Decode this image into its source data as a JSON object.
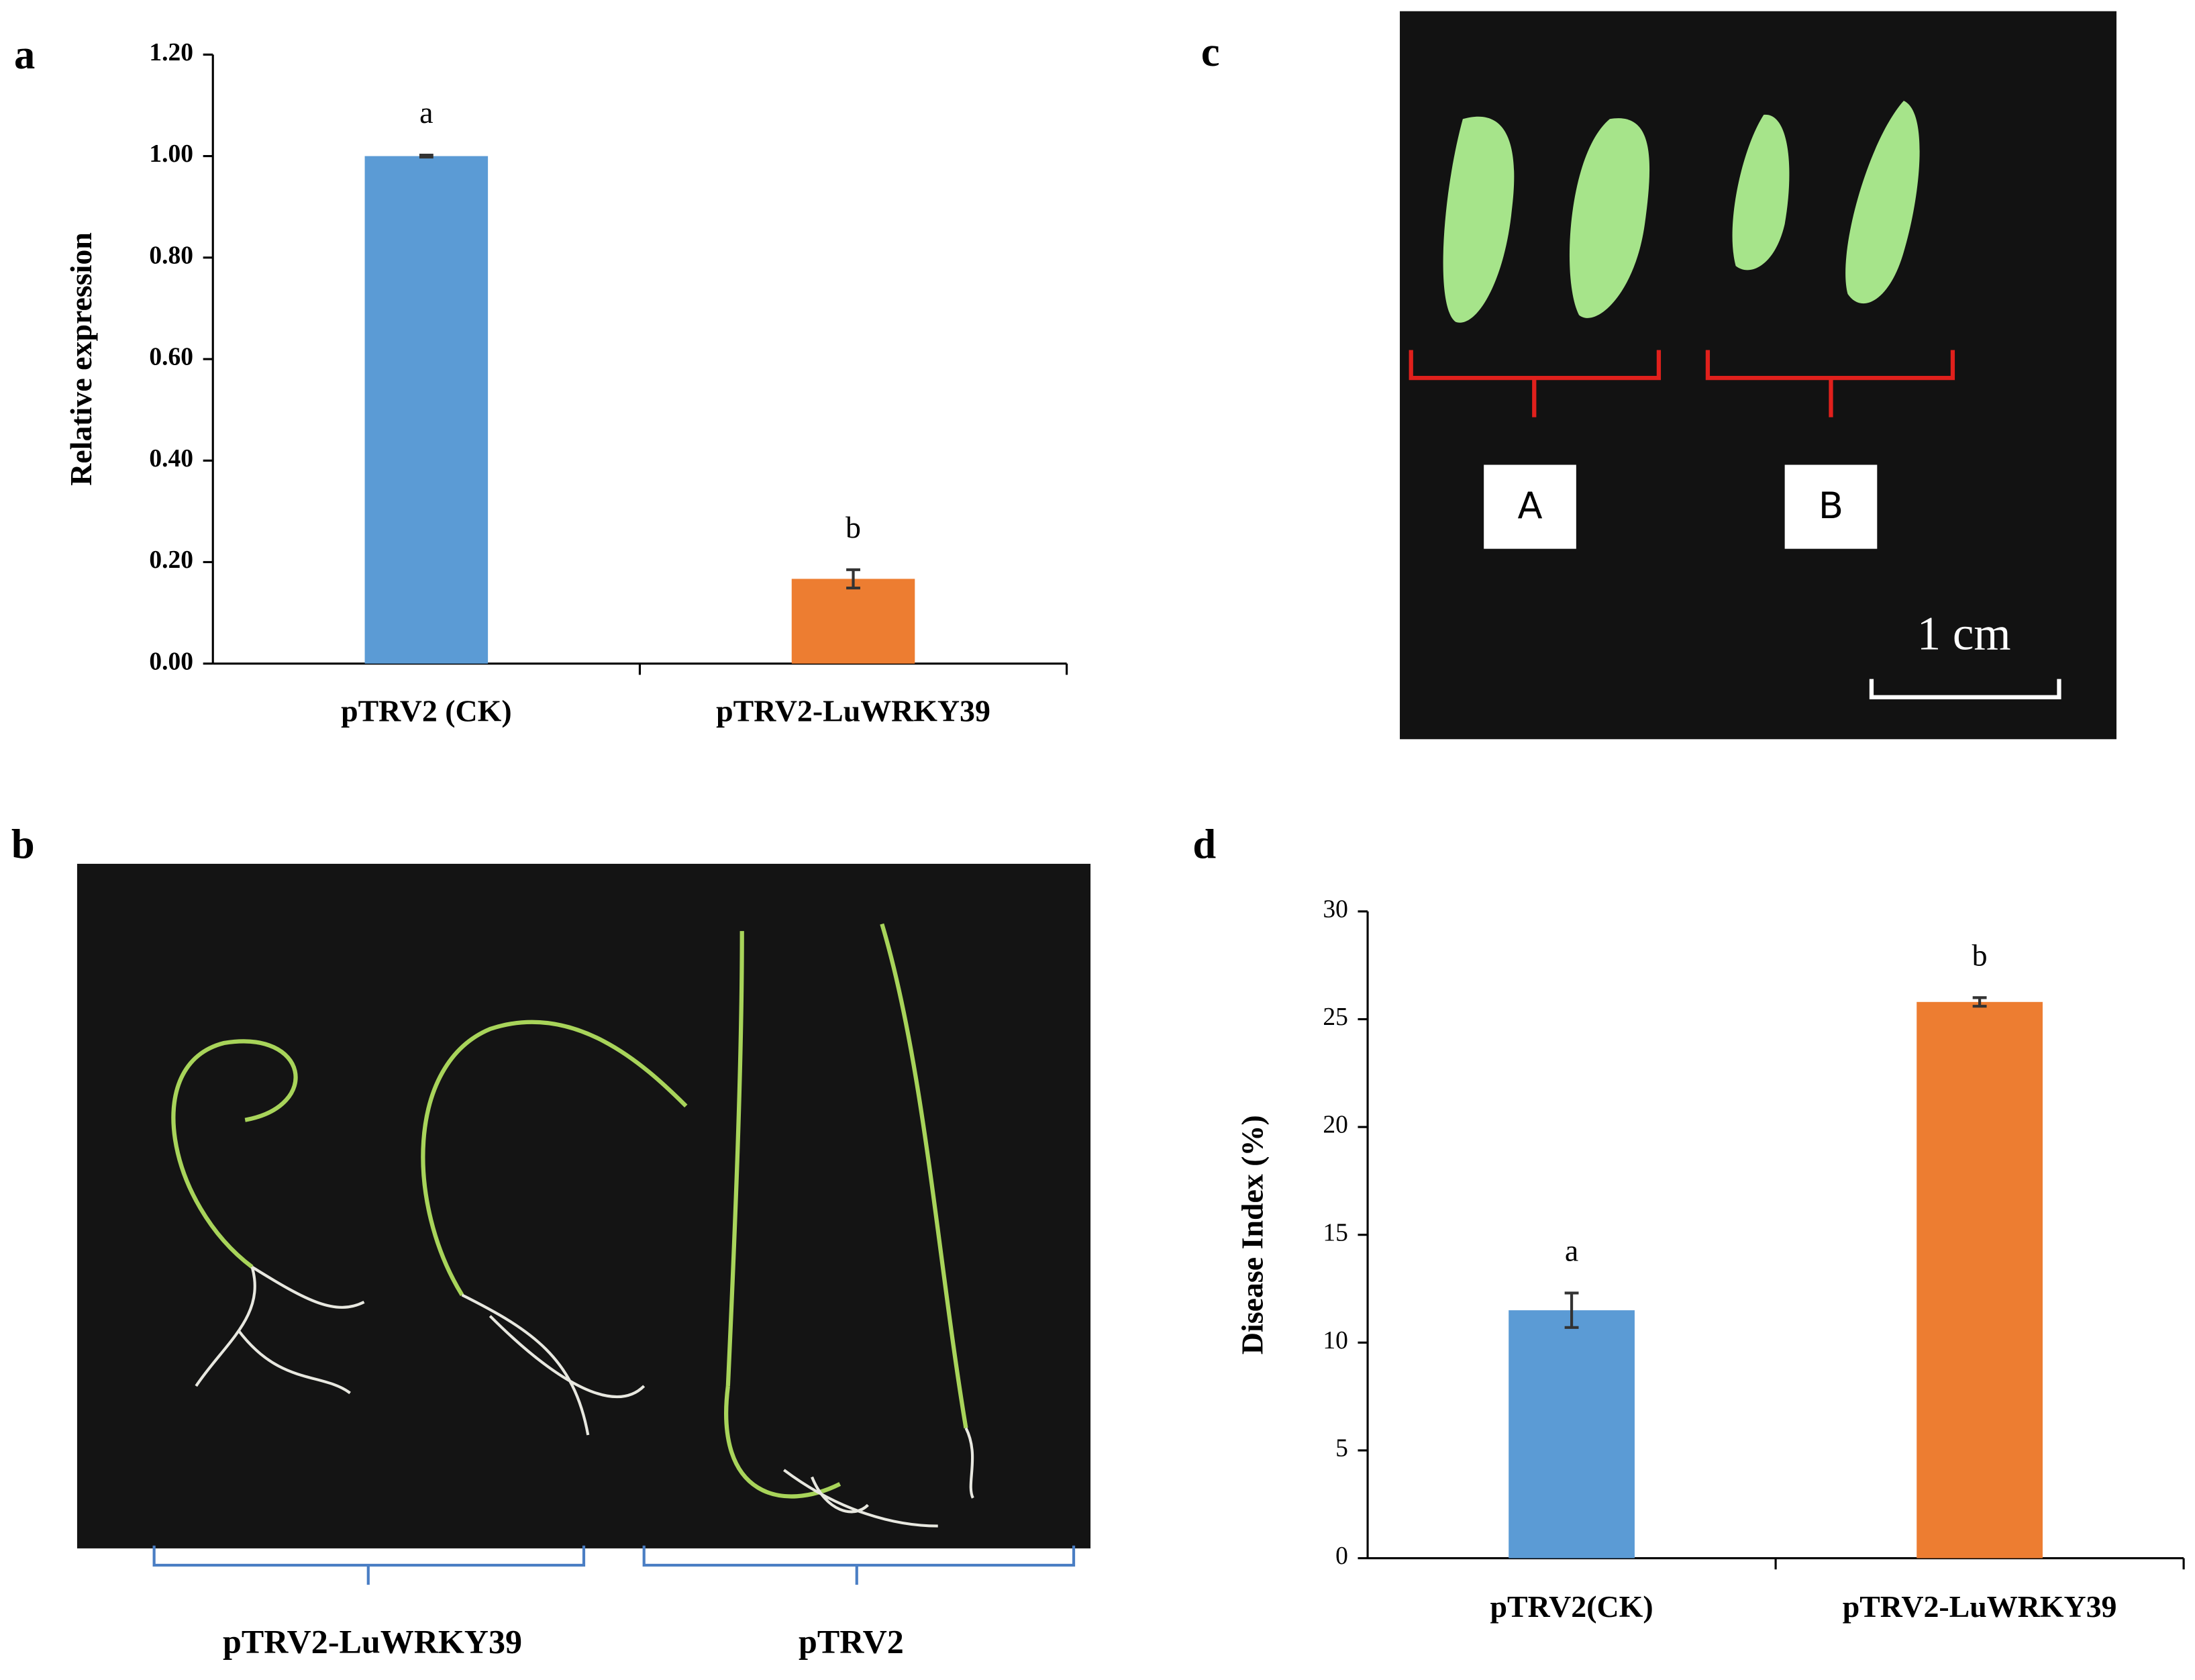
{
  "panel_labels": [
    "a",
    "b",
    "c",
    "d"
  ],
  "photo_b": {
    "labels": [
      "pTRV2-LuWRKY39",
      "pTRV2"
    ]
  },
  "photo_c": {
    "labels": [
      "A",
      "B"
    ],
    "scale_bar": "1 cm"
  },
  "chart_data": [
    {
      "type": "bar",
      "y_label": "Relative expression",
      "categories": [
        "pTRV2 (CK)",
        "pTRV2-LuWRKY39"
      ],
      "values": [
        1.0,
        0.167
      ],
      "errors": [
        0.002,
        0.018
      ],
      "annotations": [
        "a",
        "b"
      ],
      "colors": [
        "#5b9bd5",
        "#ed7d31"
      ],
      "ylim": [
        0,
        1.2
      ],
      "yticks": [
        {
          "value": 0,
          "label": "0.00"
        },
        {
          "value": 0.2,
          "label": "0.20"
        },
        {
          "value": 0.4,
          "label": "0.40"
        },
        {
          "value": 0.6,
          "label": "0.60"
        },
        {
          "value": 0.8,
          "label": "0.80"
        },
        {
          "value": 1.0,
          "label": "1.00"
        },
        {
          "value": 1.2,
          "label": "1.20"
        }
      ],
      "grid": false
    },
    {
      "type": "bar",
      "y_label": "Disease Index (%)",
      "categories": [
        "pTRV2(CK)",
        "pTRV2-LuWRKY39"
      ],
      "values": [
        11.5,
        25.8
      ],
      "errors": [
        0.8,
        0.2
      ],
      "annotations": [
        "a",
        "b"
      ],
      "colors": [
        "#5b9bd5",
        "#ed7d31"
      ],
      "ylim": [
        0,
        30
      ],
      "yticks": [
        0,
        5,
        10,
        15,
        20,
        25,
        30
      ],
      "grid": false
    }
  ]
}
